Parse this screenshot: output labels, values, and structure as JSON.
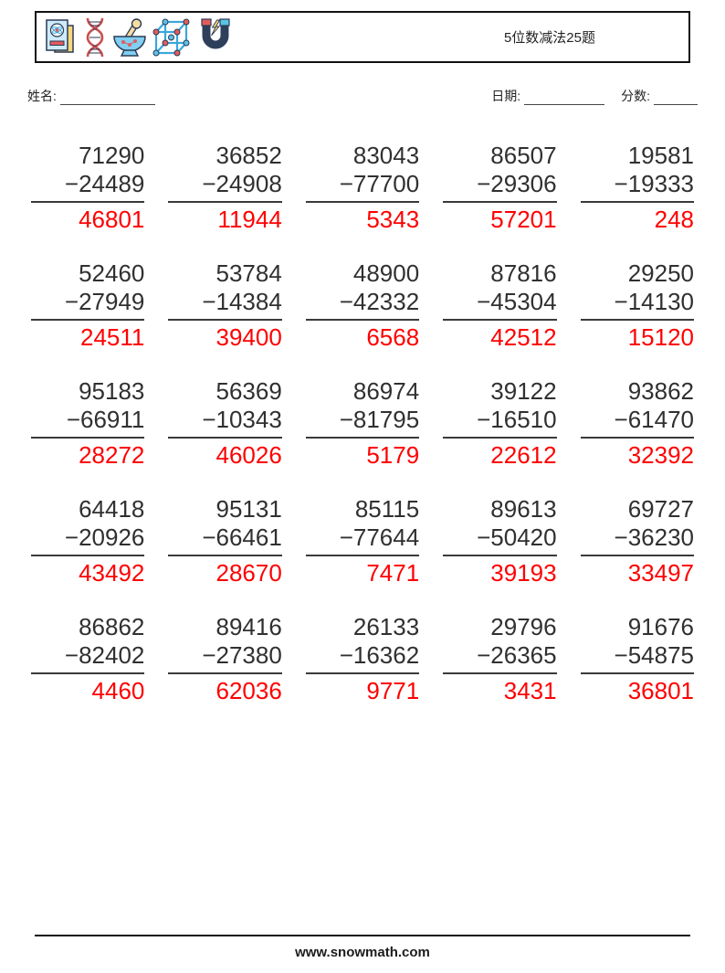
{
  "header": {
    "title": "5位数减法25题",
    "icons": [
      "science-book-icon",
      "dna-icon",
      "mortar-pestle-icon",
      "molecule-cube-icon",
      "magnet-icon"
    ]
  },
  "fields": {
    "name_label": "姓名:",
    "date_label": "日期:",
    "score_label": "分数:"
  },
  "operator": "−",
  "problems": [
    {
      "minuend": "71290",
      "subtrahend": "24489",
      "answer": "46801"
    },
    {
      "minuend": "36852",
      "subtrahend": "24908",
      "answer": "11944"
    },
    {
      "minuend": "83043",
      "subtrahend": "77700",
      "answer": "5343"
    },
    {
      "minuend": "86507",
      "subtrahend": "29306",
      "answer": "57201"
    },
    {
      "minuend": "19581",
      "subtrahend": "19333",
      "answer": "248"
    },
    {
      "minuend": "52460",
      "subtrahend": "27949",
      "answer": "24511"
    },
    {
      "minuend": "53784",
      "subtrahend": "14384",
      "answer": "39400"
    },
    {
      "minuend": "48900",
      "subtrahend": "42332",
      "answer": "6568"
    },
    {
      "minuend": "87816",
      "subtrahend": "45304",
      "answer": "42512"
    },
    {
      "minuend": "29250",
      "subtrahend": "14130",
      "answer": "15120"
    },
    {
      "minuend": "95183",
      "subtrahend": "66911",
      "answer": "28272"
    },
    {
      "minuend": "56369",
      "subtrahend": "10343",
      "answer": "46026"
    },
    {
      "minuend": "86974",
      "subtrahend": "81795",
      "answer": "5179"
    },
    {
      "minuend": "39122",
      "subtrahend": "16510",
      "answer": "22612"
    },
    {
      "minuend": "93862",
      "subtrahend": "61470",
      "answer": "32392"
    },
    {
      "minuend": "64418",
      "subtrahend": "20926",
      "answer": "43492"
    },
    {
      "minuend": "95131",
      "subtrahend": "66461",
      "answer": "28670"
    },
    {
      "minuend": "85115",
      "subtrahend": "77644",
      "answer": "7471"
    },
    {
      "minuend": "89613",
      "subtrahend": "50420",
      "answer": "39193"
    },
    {
      "minuend": "69727",
      "subtrahend": "36230",
      "answer": "33497"
    },
    {
      "minuend": "86862",
      "subtrahend": "82402",
      "answer": "4460"
    },
    {
      "minuend": "89416",
      "subtrahend": "27380",
      "answer": "62036"
    },
    {
      "minuend": "26133",
      "subtrahend": "16362",
      "answer": "9771"
    },
    {
      "minuend": "29796",
      "subtrahend": "26365",
      "answer": "3431"
    },
    {
      "minuend": "91676",
      "subtrahend": "54875",
      "answer": "36801"
    }
  ],
  "footer": {
    "site": "www.snowmath.com"
  },
  "colors": {
    "answer_red": "#ff0000",
    "number_ink": "#303030"
  }
}
